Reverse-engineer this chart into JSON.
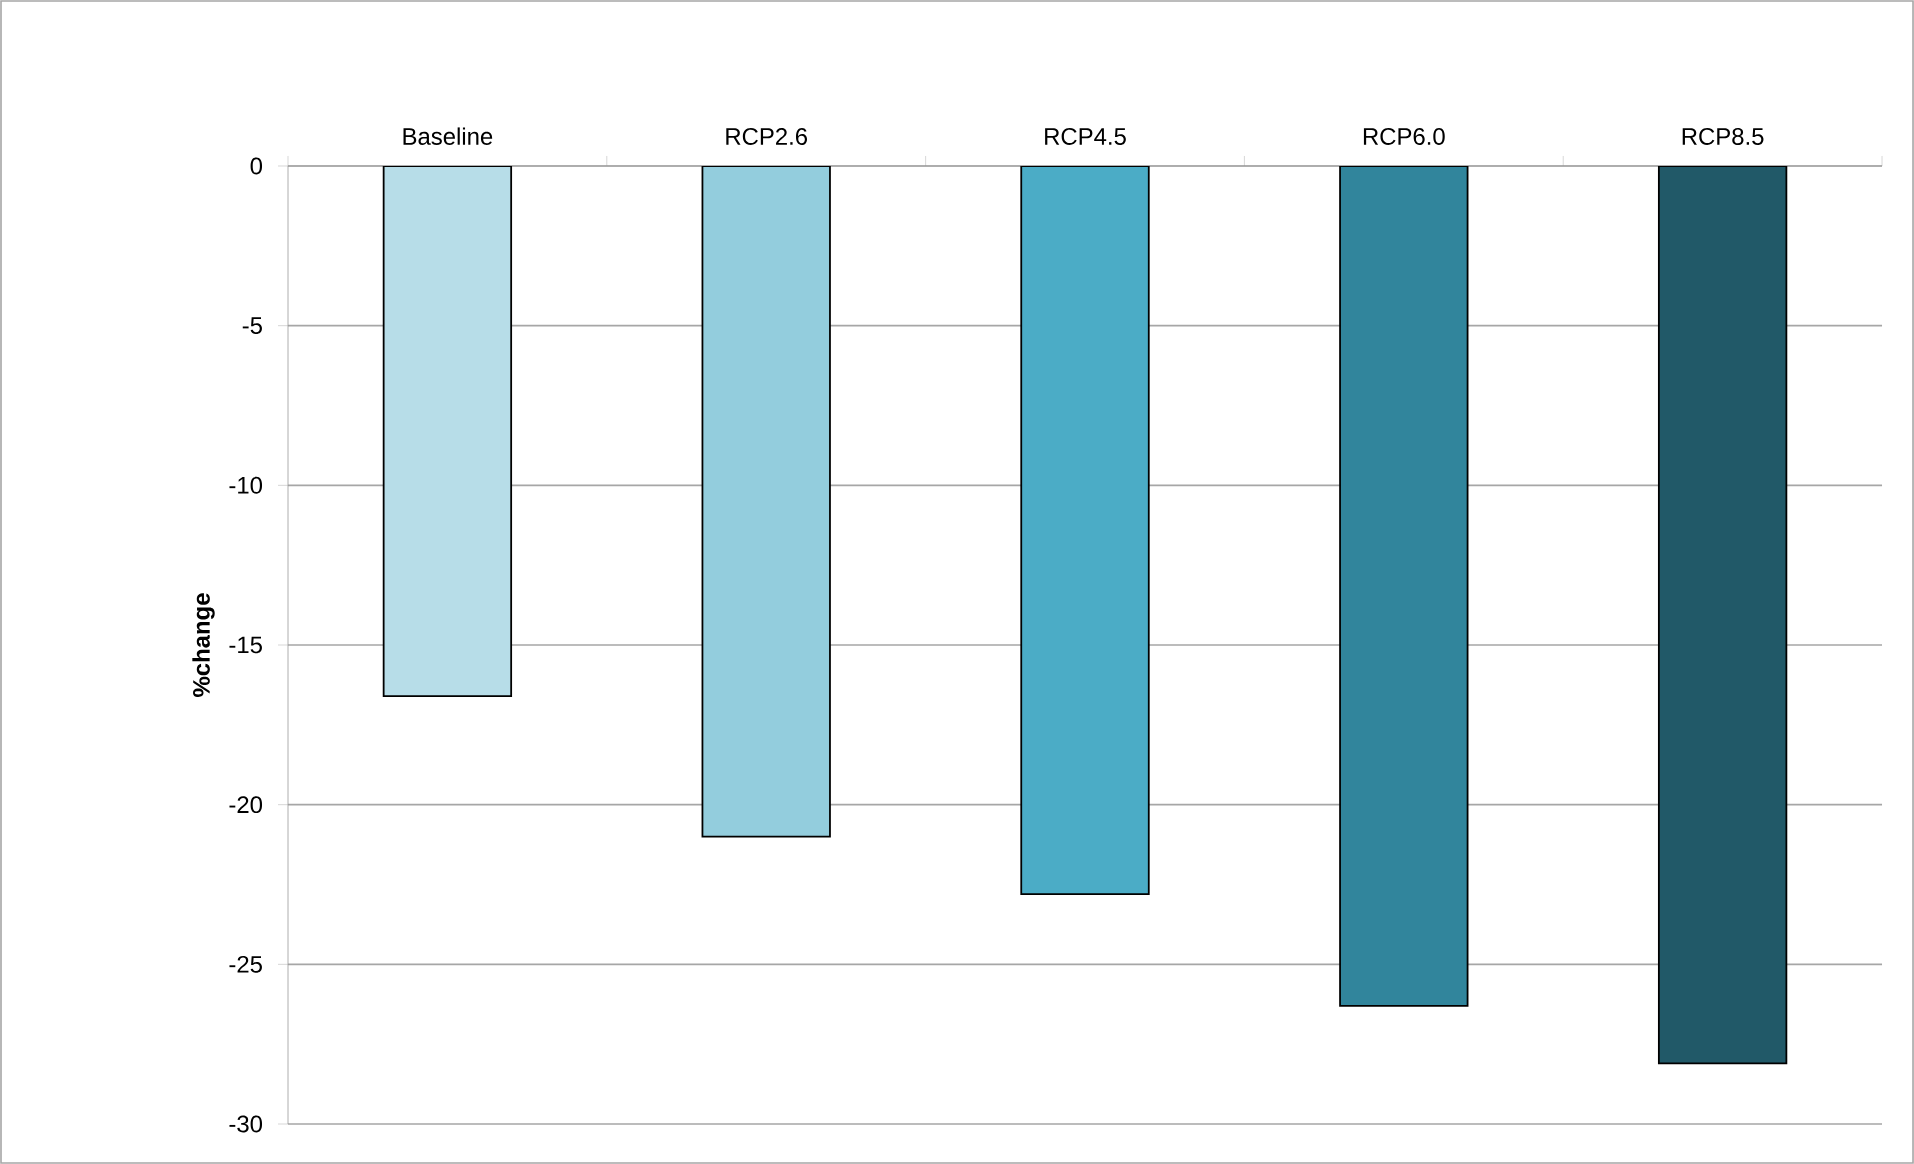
{
  "chart_data": {
    "type": "bar",
    "ylabel": "%change",
    "categories": [
      "Baseline",
      "RCP2.6",
      "RCP4.5",
      "RCP6.0",
      "RCP8.5"
    ],
    "values": [
      -16.6,
      -21.0,
      -22.8,
      -26.3,
      -28.1
    ],
    "colors": [
      "#b7dde8",
      "#93cddd",
      "#4bacc6",
      "#31859c",
      "#215968"
    ],
    "ylim": [
      -30,
      0
    ],
    "yticks": [
      -30,
      -25,
      -20,
      -15,
      -10,
      -5,
      0
    ],
    "grid": "y"
  }
}
